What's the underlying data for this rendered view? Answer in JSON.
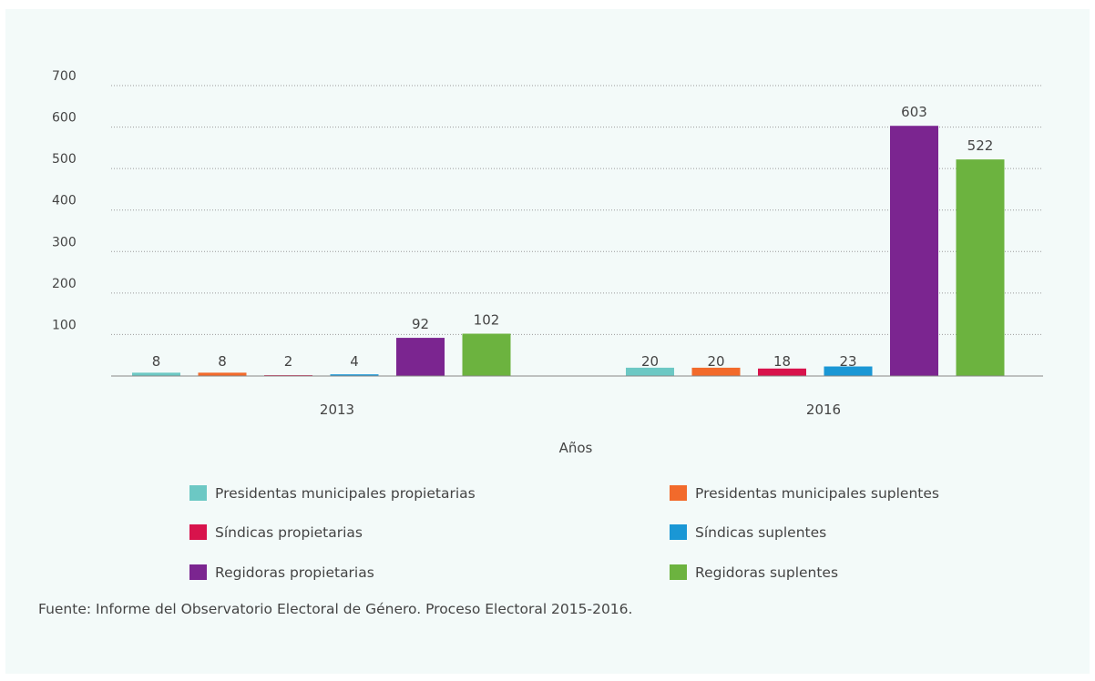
{
  "chart_data": {
    "type": "bar",
    "categories": [
      "2013",
      "2016"
    ],
    "xlabel": "Años",
    "ylabel": "",
    "ylim": [
      0,
      700
    ],
    "yticks": [
      100,
      200,
      300,
      400,
      500,
      600,
      700
    ],
    "grid": true,
    "legend_position": "bottom",
    "series": [
      {
        "name": "Presidentas municipales propietarias",
        "color": "#6cc8c4",
        "values": [
          8,
          20
        ]
      },
      {
        "name": "Presidentas municipales suplentes",
        "color": "#f26a2b",
        "values": [
          8,
          20
        ]
      },
      {
        "name": "Síndicas propietarias",
        "color": "#d8134c",
        "values": [
          2,
          18
        ]
      },
      {
        "name": "Síndicas suplentes",
        "color": "#1a97d5",
        "values": [
          4,
          23
        ]
      },
      {
        "name": "Regidoras propietarias",
        "color": "#7b2590",
        "values": [
          92,
          603
        ]
      },
      {
        "name": "Regidoras suplentes",
        "color": "#6cb33f",
        "values": [
          102,
          522
        ]
      }
    ]
  },
  "source": "Fuente: Informe del Observatorio Electoral de Género. Proceso Electoral 2015-2016."
}
